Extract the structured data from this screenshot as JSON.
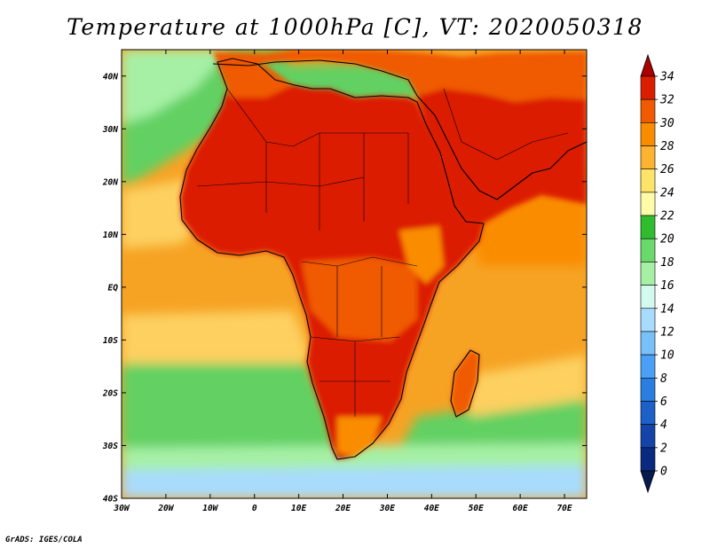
{
  "title": "Temperature at 1000hPa [C], VT: 2020050318",
  "credit": "GrADS: IGES/COLA",
  "map": {
    "region": "Africa",
    "variable": "Temperature at 1000hPa",
    "units": "C",
    "lon_range": [
      -30,
      75
    ],
    "lat_range": [
      -40,
      45
    ],
    "lon_ticks": [
      "30W",
      "20W",
      "10W",
      "0",
      "10E",
      "20E",
      "30E",
      "40E",
      "50E",
      "60E",
      "70E"
    ],
    "lat_ticks": [
      "40N",
      "30N",
      "20N",
      "10N",
      "EQ",
      "10S",
      "20S",
      "30S",
      "40S"
    ]
  },
  "colorbar": {
    "labels": [
      "34",
      "32",
      "30",
      "28",
      "26",
      "24",
      "22",
      "20",
      "18",
      "16",
      "14",
      "12",
      "10",
      "8",
      "6",
      "4",
      "2",
      "0"
    ],
    "colors": [
      "#aa0000",
      "#dc1e00",
      "#f05a00",
      "#fa8c00",
      "#fcb430",
      "#fde468",
      "#fffba8",
      "#2fbd2f",
      "#6ad86a",
      "#a6f0a6",
      "#d4faf0",
      "#a8dcfc",
      "#78c0f8",
      "#4aa0f4",
      "#2a7ee0",
      "#1c60c8",
      "#1444a8",
      "#0a2a80",
      "#061a50"
    ]
  },
  "palette": {
    "ocean_warm": "#f6a324",
    "ocean_mid": "#fdd060",
    "ocean_cool": "#62d062",
    "ocean_cold": "#a8dcfc",
    "land_hot": "#dc1e00",
    "land_warm": "#f05a00",
    "coast": "#000000"
  }
}
